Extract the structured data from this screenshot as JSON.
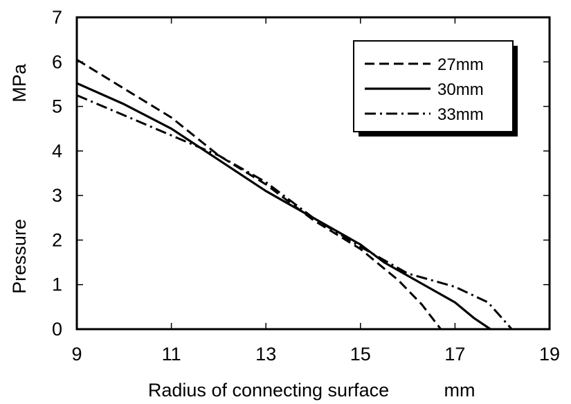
{
  "chart_data": {
    "type": "line",
    "title": "",
    "xlabel": "Radius of connecting surface",
    "xunit": "mm",
    "ylabel": "Pressure",
    "yunit": "MPa",
    "xlim": [
      9,
      19
    ],
    "ylim": [
      0,
      7
    ],
    "xticks": [
      "9",
      "11",
      "13",
      "15",
      "17",
      "19"
    ],
    "yticks": [
      "0",
      "1",
      "2",
      "3",
      "4",
      "5",
      "6",
      "7"
    ],
    "grid": false,
    "legend_position": "top-right",
    "series": [
      {
        "name": "27mm",
        "style": "dashed",
        "x": [
          9,
          10,
          11,
          12,
          13,
          14,
          15,
          15.8,
          16.3,
          16.7
        ],
        "y": [
          6.05,
          5.4,
          4.75,
          3.9,
          3.25,
          2.45,
          1.8,
          1.1,
          0.55,
          0
        ]
      },
      {
        "name": "30mm",
        "style": "solid",
        "x": [
          9,
          10,
          11,
          12,
          13,
          14,
          15,
          15.5,
          16,
          17,
          17.4,
          17.75
        ],
        "y": [
          5.52,
          5.05,
          4.5,
          3.8,
          3.1,
          2.5,
          1.9,
          1.5,
          1.2,
          0.6,
          0.25,
          0
        ]
      },
      {
        "name": "33mm",
        "style": "dash-dot",
        "x": [
          9,
          10,
          11,
          12,
          13,
          14,
          15,
          16,
          17,
          17.7,
          18.2
        ],
        "y": [
          5.25,
          4.8,
          4.35,
          3.9,
          3.3,
          2.5,
          1.85,
          1.25,
          0.95,
          0.6,
          0
        ]
      }
    ]
  }
}
